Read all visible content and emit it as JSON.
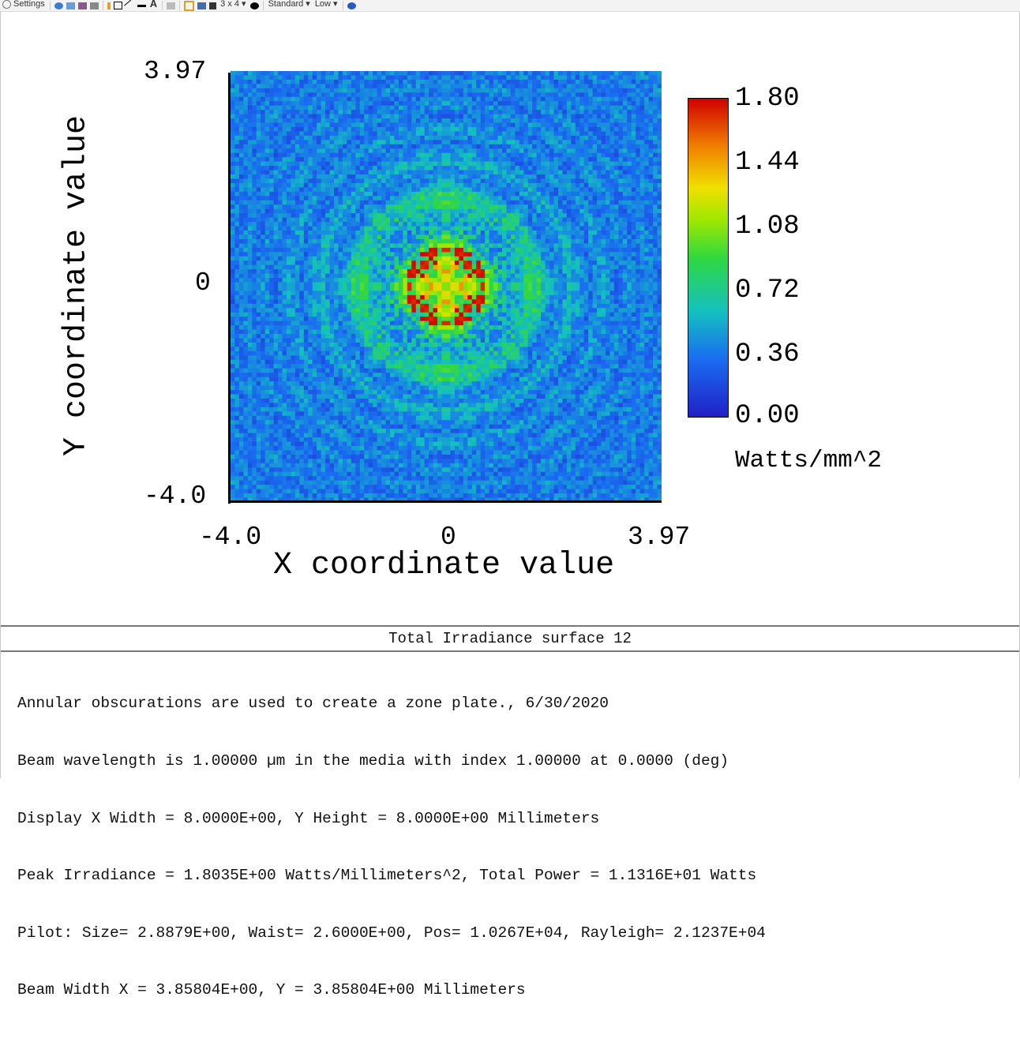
{
  "toolbar": {
    "settings_label": "Settings",
    "layout_label": "3 x 4",
    "quality_label": "Standard",
    "sampling_label": "Low",
    "icons": [
      "chevron-down-icon",
      "refresh-icon",
      "copy-icon",
      "save-icon",
      "print-icon",
      "pencil-icon",
      "rectangle-icon",
      "line-icon",
      "thick-line-icon",
      "text-icon",
      "clipboard-icon",
      "grid-icon",
      "window-icon",
      "layers-icon",
      "settings-gear-icon",
      "help-icon"
    ]
  },
  "chart_data": {
    "type": "heatmap",
    "title": "Total Irradiance surface 12",
    "xlabel": "X coordinate value",
    "ylabel": "Y coordinate value",
    "x_ticks": [
      "-4.0",
      "0",
      "3.97"
    ],
    "y_ticks": [
      "3.97",
      "0",
      "-4.0"
    ],
    "xlim": [
      -4.0,
      3.97
    ],
    "ylim": [
      -4.0,
      3.97
    ],
    "colorbar": {
      "ticks": [
        "1.80",
        "1.44",
        "1.08",
        "0.72",
        "0.36",
        "0.00"
      ],
      "range": [
        0.0,
        1.8
      ],
      "unit": "Watts/mm^2",
      "colormap": "jet",
      "colors": [
        "#1f1fc8",
        "#1a6cf0",
        "#14c8b0",
        "#40e020",
        "#e0e000",
        "#f08000",
        "#d00000"
      ]
    },
    "peak_value": 1.8035,
    "grid": false
  },
  "info": {
    "title": "Total Irradiance surface 12",
    "lines": [
      "Annular obscurations are used to create a zone plate., 6/30/2020",
      "Beam wavelength is 1.00000 µm in the media with index 1.00000 at 0.0000 (deg)",
      "Display X Width = 8.0000E+00, Y Height = 8.0000E+00 Millimeters",
      "Peak Irradiance = 1.8035E+00 Watts/Millimeters^2, Total Power = 1.1316E+01 Watts",
      "Pilot: Size= 2.8879E+00, Waist= 2.6000E+00, Pos= 1.0267E+04, Rayleigh= 2.1237E+04",
      "Beam Width X = 3.85804E+00, Y = 3.85804E+00 Millimeters"
    ]
  }
}
